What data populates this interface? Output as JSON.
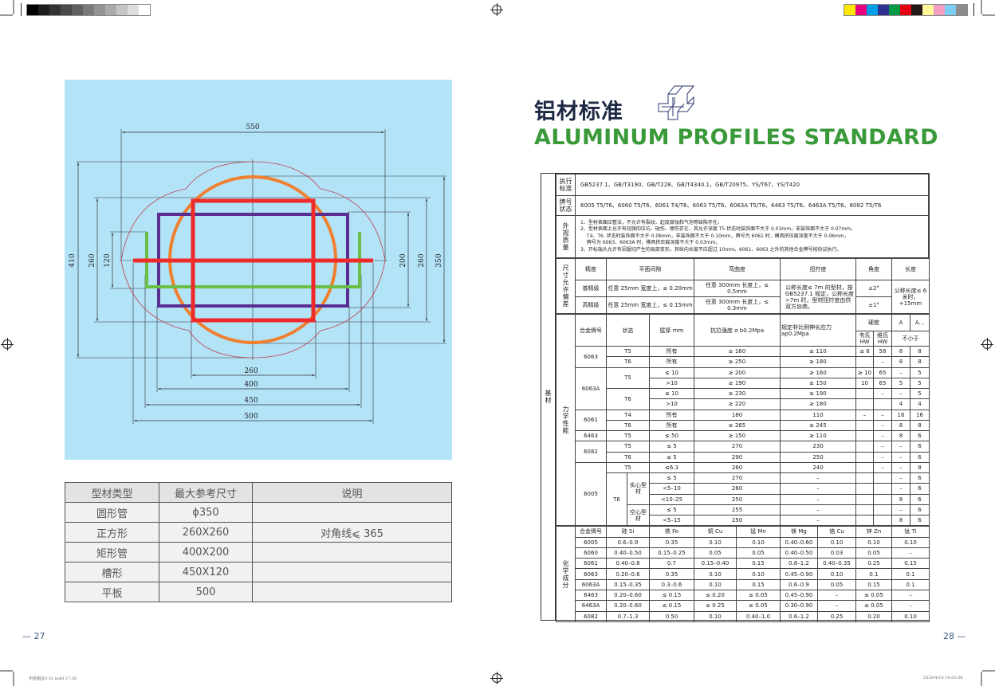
{
  "print_marks": {
    "gray_swatches": [
      "#000000",
      "#1c1c1c",
      "#333333",
      "#4a4a4a",
      "#606060",
      "#7a7a7a",
      "#939393",
      "#ababab",
      "#c6c6c6",
      "#dedede",
      "#ffffff"
    ],
    "color_swatches": [
      "#ffe600",
      "#e4007f",
      "#00a0e9",
      "#2e3192",
      "#009944",
      "#e60012",
      "#231815",
      "#fff799",
      "#f19ec2",
      "#7ecef4",
      "#8c8c8c"
    ],
    "slug_left": "中亚铝业3-31.indd  27-28",
    "slug_right": "2020/4/16  10:03:06"
  },
  "left_page": {
    "page_number": "27",
    "drawing": {
      "colors": {
        "background": "#b3e3f7",
        "round_tube": "#f08030",
        "square": "#ee2a2a",
        "rect_tube": "#5a2d91",
        "channel": "#6abf45",
        "flat": "#ee2a2a",
        "outline": "#c04050"
      },
      "dims": {
        "d550": "550",
        "d410": "410",
        "d260_left": "260",
        "d120": "120",
        "d200": "200",
        "d260_right": "260",
        "d350": "350",
        "d260_bottom": "260",
        "d400": "400",
        "d450": "450",
        "d500": "500"
      }
    },
    "table": {
      "headers": [
        "型材类型",
        "最大参考尺寸",
        "说明"
      ],
      "rows": [
        [
          "圆形管",
          "ɸ350",
          ""
        ],
        [
          "正方形",
          "260X260",
          "对角线⩽ 365"
        ],
        [
          "矩形管",
          "400X200",
          ""
        ],
        [
          "槽形",
          "450X120",
          ""
        ],
        [
          "平板",
          "500",
          ""
        ]
      ]
    }
  },
  "right_page": {
    "page_number": "28",
    "title_cn": "铝材标准",
    "title_en": "ALUMINUM PROFILES STANDARD",
    "table": {
      "side_label": "基材",
      "standard": {
        "label": "执行标准",
        "value": "GB5237.1、GB/T3190、GB/T228、GB/T4340.1、GB/T20975、YS/T67、YS/T420"
      },
      "grades": {
        "label": "牌号状态",
        "value": "6005 T5/T6、6060 T5/T6、6061 T4/T6、6063 T5/T6、6063A T5/T6、6463 T5/T6、6463A T5/T6、6082 T5/T6"
      },
      "appearance": {
        "label": "外观质量",
        "lines": [
          "1、型材表面应整洁，不允许有裂纹、起皮腐蚀和气泡等缺陷存在。",
          "2、型材表面上允许有轻微的压坑、碰伤、擦伤存在，其允许深度 T5 状态时装饰面不大于 0.03mm，非装饰面不大于 0.07mm。",
          "　 T4、T6. 状态时装饰面不大于 0.06mm，非装饰面不大于 0.10mm，牌号为 6061 时，模具挤压痕深度不大于 0.06mm，",
          "　 牌号为 6063、6063A 时，模具挤压痕深度不大于 0.03mm。",
          "3、开标端头允许有因锯切产生的局部变形，其纵向长度不应超过 10mm。6061、6063 之外的其他合金牌号按协议执行。"
        ]
      },
      "dimensions": {
        "label": "尺寸允许偏差",
        "headers": [
          "精度",
          "平面间隙",
          "弯曲度",
          "扭拧度",
          "角度",
          "长度"
        ],
        "rows": [
          {
            "grade": "普精级",
            "flatness": "任意 25mm 宽度上，≤ 0.20mm",
            "bend": "任意 300mm 长度上，≤ 0.5mm",
            "angle": "±2°"
          },
          {
            "grade": "高精级",
            "flatness": "任意 25mm 宽度上，≤ 0.15mm",
            "bend": "任意 300mm 长度上，≤ 0.3mm",
            "angle": "±1°"
          }
        ],
        "twist": "公称长度≤ 7m 的型材，按 GB5237.1 规定，公称长度 >7m 时，型材扭拧度由供双方协商。",
        "length": "公称长度≤ 6 米时，+15mm"
      },
      "mechanical": {
        "label": "力学性能",
        "headers": {
          "alloy": "合金牌号",
          "temper": "状态",
          "wall": "壁厚 mm",
          "tensile": "抗拉强度 σ b0.2Mpa",
          "yield": "规定非比例伸长应力 ap0.2Mpa",
          "hardness": "硬度",
          "hw1": "韦氏 HW",
          "hw2": "维氏 HW",
          "a": "A",
          "a2": "A...",
          "min": "不小于"
        },
        "groups": [
          {
            "alloy": "6063",
            "tempers": [
              {
                "temper": "T5",
                "rows": [
                  [
                    "所有",
                    "≥ 160",
                    "≥ 110",
                    "≤ 8",
                    "58",
                    "8",
                    "8"
                  ]
                ]
              },
              {
                "temper": "T6",
                "rows": [
                  [
                    "所有",
                    "≥ 250",
                    "≥ 180",
                    "",
                    "–",
                    "8",
                    "8"
                  ]
                ]
              }
            ]
          },
          {
            "alloy": "6063A",
            "tempers": [
              {
                "temper": "T5",
                "rows": [
                  [
                    "≤ 10",
                    "≥ 200",
                    "≥ 160",
                    "≥ 10",
                    "65",
                    "–",
                    "5"
                  ],
                  [
                    ">10",
                    "≥ 190",
                    "≥ 150",
                    "10",
                    "65",
                    "5",
                    "5"
                  ]
                ]
              },
              {
                "temper": "T6",
                "rows": [
                  [
                    "≤ 10",
                    "≥ 230",
                    "≥ 190",
                    "",
                    "–",
                    "–",
                    "5"
                  ],
                  [
                    ">10",
                    "≥ 220",
                    "≥ 180",
                    "",
                    "",
                    "4",
                    "4"
                  ]
                ]
              }
            ]
          },
          {
            "alloy": "6061",
            "tempers": [
              {
                "temper": "T4",
                "rows": [
                  [
                    "所有",
                    "180",
                    "110",
                    "–",
                    "–",
                    "16",
                    "16"
                  ]
                ]
              },
              {
                "temper": "T6",
                "rows": [
                  [
                    "所有",
                    "≥ 265",
                    "≥ 245",
                    "",
                    "–",
                    "8",
                    "8"
                  ]
                ]
              }
            ]
          },
          {
            "alloy": "6463",
            "tempers": [
              {
                "temper": "T5",
                "rows": [
                  [
                    "≤ 50",
                    "≥ 150",
                    "≥ 110",
                    "",
                    "–",
                    "8",
                    "6"
                  ]
                ]
              }
            ]
          },
          {
            "alloy": "6082",
            "tempers": [
              {
                "temper": "T5",
                "rows": [
                  [
                    "≤ 5",
                    "270",
                    "230",
                    "",
                    "–",
                    "–",
                    "6"
                  ]
                ]
              },
              {
                "temper": "T6",
                "rows": [
                  [
                    "≤ 5",
                    "290",
                    "250",
                    "",
                    "–",
                    "–",
                    "6"
                  ]
                ]
              }
            ]
          },
          {
            "alloy": "6005",
            "tempers": [
              {
                "temper": "T5",
                "rows": [
                  [
                    "≤6.3",
                    "260",
                    "240",
                    "",
                    "–",
                    "–",
                    "8"
                  ]
                ]
              },
              {
                "temper": "T6",
                "subs": [
                  {
                    "sub": "实心型材",
                    "rows": [
                      [
                        "≤ 5",
                        "270",
                        "–",
                        "",
                        "",
                        "–",
                        "6"
                      ],
                      [
                        "<5–10",
                        "260",
                        "–",
                        "",
                        "",
                        "–",
                        "6"
                      ],
                      [
                        "<10–25",
                        "250",
                        "–",
                        "",
                        "",
                        "8",
                        "6"
                      ]
                    ]
                  },
                  {
                    "sub": "空心型材",
                    "rows": [
                      [
                        "≤ 5",
                        "255",
                        "–",
                        "",
                        "",
                        "–",
                        "6"
                      ],
                      [
                        "<5–15",
                        "250",
                        "–",
                        "",
                        "",
                        "8",
                        "6"
                      ]
                    ]
                  }
                ]
              }
            ]
          }
        ]
      },
      "chemical": {
        "label": "化学成分",
        "headers": [
          "合金牌号",
          "硅 Si",
          "铁 Fe",
          "铜 Cu",
          "锰 Mn",
          "镁 Mg",
          "铬 Cu",
          "锌 Zn",
          "钛 Ti"
        ],
        "rows": [
          [
            "6005",
            "0.6–0.9",
            "0.35",
            "0.10",
            "0.10",
            "0.40–0.60",
            "0.10",
            "0.10",
            "0.10"
          ],
          [
            "6060",
            "0.40–0.50",
            "0.15–0.25",
            "0.05",
            "0.05",
            "0.40–0.50",
            "0.03",
            "0.05",
            "–"
          ],
          [
            "6061",
            "0.40–0.8",
            "0.7",
            "0.15–0.40",
            "0.15",
            "0.8–1.2",
            "0.40–0.35",
            "0.25",
            "0.15"
          ],
          [
            "6063",
            "0.20–0.6",
            "0.35",
            "0.10",
            "0.10",
            "0.45–0.90",
            "0.10",
            "0.1",
            "0.1"
          ],
          [
            "6063A",
            "0.15–0.35",
            "0.3–0.6",
            "0.10",
            "0.15",
            "0.6–0.9",
            "0.05",
            "0.15",
            "0.1"
          ],
          [
            "6463",
            "0.20–0.60",
            "≤ 0.15",
            "≤ 0.20",
            "≤ 0.05",
            "0.45–0.90",
            "–",
            "≤ 0.05",
            "–"
          ],
          [
            "6463A",
            "0.20–0.60",
            "≤ 0.15",
            "≤ 0.25",
            "≤ 0.05",
            "0.30–0.90",
            "–",
            "≤ 0.05",
            "–"
          ],
          [
            "6082",
            "0.7–1.3",
            "0.50",
            "0.10",
            "0.40–1.0",
            "0.6–1.2",
            "0.25",
            "0.20",
            "0.10"
          ]
        ]
      }
    }
  }
}
